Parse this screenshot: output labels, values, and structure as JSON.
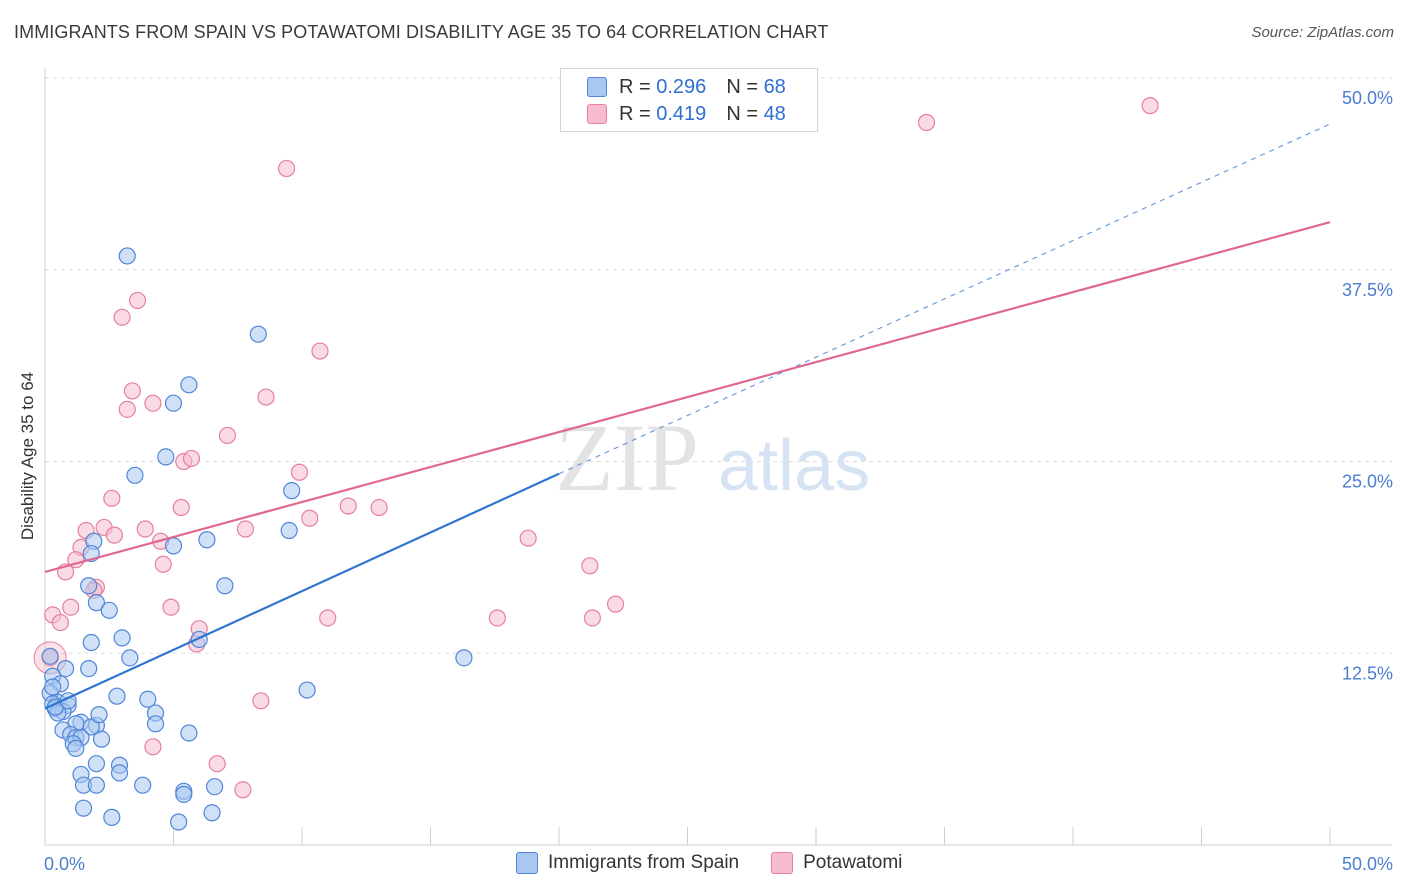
{
  "header": {
    "title": "IMMIGRANTS FROM SPAIN VS POTAWATOMI DISABILITY AGE 35 TO 64 CORRELATION CHART",
    "source": "Source: ZipAtlas.com"
  },
  "watermark": {
    "part1": "ZIP",
    "part2": "atlas"
  },
  "legend_top": {
    "rows": [
      {
        "r_label": "R =",
        "r_value": "0.296",
        "n_label": "N =",
        "n_value": "68"
      },
      {
        "r_label": "R =",
        "r_value": "0.419",
        "n_label": "N =",
        "n_value": "48"
      }
    ]
  },
  "legend_bottom": {
    "items": [
      {
        "label": "Immigrants from Spain"
      },
      {
        "label": "Potawatomi"
      }
    ]
  },
  "colors": {
    "blue_fill": "#a9c8f0",
    "blue_stroke": "#4f86d8",
    "blue_line": "#2f74d0",
    "pink_fill": "#f6bccd",
    "pink_stroke": "#e5809f",
    "pink_line": "#e06890",
    "grid": "#dcdcdc",
    "tick_label": "#4a7ed0"
  },
  "chart_data": {
    "type": "scatter",
    "title": "IMMIGRANTS FROM SPAIN VS POTAWATOMI DISABILITY AGE 35 TO 64 CORRELATION CHART",
    "xlabel": "",
    "ylabel": "Disability Age 35 to 64",
    "xlim": [
      0,
      50
    ],
    "ylim": [
      0,
      50
    ],
    "x_tick_labels": [
      {
        "value": 0,
        "label": "0.0%"
      },
      {
        "value": 50,
        "label": "50.0%"
      }
    ],
    "y_tick_labels": [
      {
        "value": 12.5,
        "label": "12.5%"
      },
      {
        "value": 25,
        "label": "25.0%"
      },
      {
        "value": 37.5,
        "label": "37.5%"
      },
      {
        "value": 50,
        "label": "50.0%"
      }
    ],
    "series": [
      {
        "name": "Immigrants from Spain",
        "color": "blue",
        "points": [
          [
            3.2,
            38.4
          ],
          [
            8.3,
            33.3
          ],
          [
            5.6,
            30.0
          ],
          [
            5.0,
            28.8
          ],
          [
            3.5,
            24.1
          ],
          [
            4.7,
            25.3
          ],
          [
            9.6,
            23.1
          ],
          [
            9.5,
            20.5
          ],
          [
            6.3,
            19.9
          ],
          [
            5.0,
            19.5
          ],
          [
            1.9,
            19.8
          ],
          [
            1.8,
            19.0
          ],
          [
            7.0,
            16.9
          ],
          [
            1.7,
            16.9
          ],
          [
            2.0,
            15.8
          ],
          [
            2.5,
            15.3
          ],
          [
            3.0,
            13.5
          ],
          [
            1.8,
            13.2
          ],
          [
            6.0,
            13.4
          ],
          [
            3.3,
            12.2
          ],
          [
            16.3,
            12.2
          ],
          [
            0.8,
            11.5
          ],
          [
            1.7,
            11.5
          ],
          [
            0.3,
            11.0
          ],
          [
            0.6,
            10.5
          ],
          [
            10.2,
            10.1
          ],
          [
            0.2,
            9.9
          ],
          [
            2.8,
            9.7
          ],
          [
            4.0,
            9.5
          ],
          [
            0.5,
            9.3
          ],
          [
            0.3,
            9.2
          ],
          [
            0.9,
            9.1
          ],
          [
            0.4,
            8.9
          ],
          [
            0.7,
            8.7
          ],
          [
            0.5,
            8.6
          ],
          [
            4.3,
            8.6
          ],
          [
            1.4,
            8.0
          ],
          [
            1.2,
            7.9
          ],
          [
            2.0,
            7.8
          ],
          [
            1.8,
            7.7
          ],
          [
            4.3,
            7.9
          ],
          [
            0.7,
            7.5
          ],
          [
            5.6,
            7.3
          ],
          [
            1.0,
            7.2
          ],
          [
            1.2,
            7.0
          ],
          [
            1.4,
            7.0
          ],
          [
            2.2,
            6.9
          ],
          [
            1.1,
            6.6
          ],
          [
            1.2,
            6.3
          ],
          [
            2.0,
            5.3
          ],
          [
            2.9,
            5.2
          ],
          [
            2.9,
            4.7
          ],
          [
            1.4,
            4.6
          ],
          [
            1.5,
            3.9
          ],
          [
            2.0,
            3.9
          ],
          [
            3.8,
            3.9
          ],
          [
            6.6,
            3.8
          ],
          [
            5.4,
            3.5
          ],
          [
            5.4,
            3.3
          ],
          [
            1.5,
            2.4
          ],
          [
            6.5,
            2.1
          ],
          [
            2.6,
            1.8
          ],
          [
            5.2,
            1.5
          ],
          [
            0.2,
            12.3
          ],
          [
            0.3,
            10.3
          ],
          [
            0.4,
            9.0
          ],
          [
            0.9,
            9.4
          ],
          [
            2.1,
            8.5
          ]
        ]
      },
      {
        "name": "Potawatomi",
        "color": "pink",
        "points": [
          [
            43.0,
            48.2
          ],
          [
            34.3,
            47.1
          ],
          [
            9.4,
            44.1
          ],
          [
            3.6,
            35.5
          ],
          [
            3.0,
            34.4
          ],
          [
            10.7,
            32.2
          ],
          [
            3.4,
            29.6
          ],
          [
            4.2,
            28.8
          ],
          [
            3.2,
            28.4
          ],
          [
            8.6,
            29.2
          ],
          [
            7.1,
            26.7
          ],
          [
            5.4,
            25.0
          ],
          [
            5.7,
            25.2
          ],
          [
            9.9,
            24.3
          ],
          [
            2.6,
            22.6
          ],
          [
            5.3,
            22.0
          ],
          [
            11.8,
            22.1
          ],
          [
            13.0,
            22.0
          ],
          [
            10.3,
            21.3
          ],
          [
            1.6,
            20.5
          ],
          [
            2.3,
            20.7
          ],
          [
            3.9,
            20.6
          ],
          [
            7.8,
            20.6
          ],
          [
            2.7,
            20.2
          ],
          [
            4.5,
            19.8
          ],
          [
            18.8,
            20.0
          ],
          [
            1.4,
            19.4
          ],
          [
            1.2,
            18.6
          ],
          [
            4.6,
            18.3
          ],
          [
            21.2,
            18.2
          ],
          [
            0.8,
            17.8
          ],
          [
            2.0,
            16.8
          ],
          [
            1.9,
            16.6
          ],
          [
            4.9,
            15.5
          ],
          [
            1.0,
            15.5
          ],
          [
            0.3,
            15.0
          ],
          [
            0.6,
            14.5
          ],
          [
            22.2,
            15.7
          ],
          [
            11.0,
            14.8
          ],
          [
            17.6,
            14.8
          ],
          [
            21.3,
            14.8
          ],
          [
            6.0,
            14.1
          ],
          [
            5.9,
            13.1
          ],
          [
            0.2,
            12.2
          ],
          [
            8.4,
            9.4
          ],
          [
            4.2,
            6.4
          ],
          [
            6.7,
            5.3
          ],
          [
            7.7,
            3.6
          ]
        ]
      }
    ],
    "trend_lines": [
      {
        "series": "Immigrants from Spain",
        "solid": [
          [
            0,
            8.9
          ],
          [
            20,
            24.2
          ]
        ],
        "dashed": [
          [
            20,
            24.2
          ],
          [
            50,
            47.0
          ]
        ]
      },
      {
        "series": "Potawatomi",
        "solid": [
          [
            0,
            17.8
          ],
          [
            50,
            40.6
          ]
        ]
      }
    ]
  }
}
